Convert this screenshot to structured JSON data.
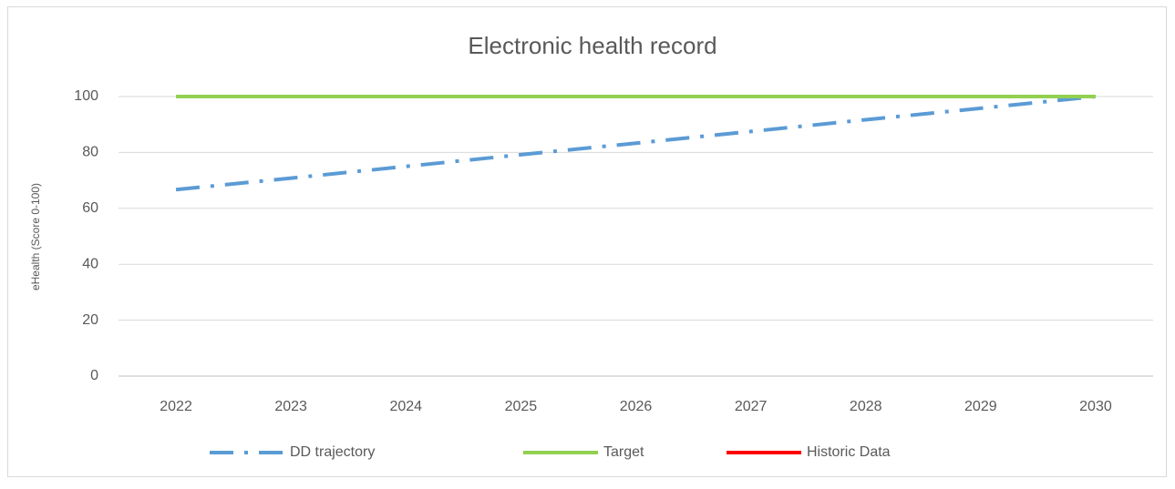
{
  "chart_data": {
    "type": "line",
    "title": "Electronic health record",
    "ylabel": "eHealth (Score 0-100)",
    "categories": [
      "2022",
      "2023",
      "2024",
      "2025",
      "2026",
      "2027",
      "2028",
      "2029",
      "2030"
    ],
    "series": [
      {
        "name": "DD trajectory",
        "color": "#5b9bd5",
        "dash": "long-dash-dot",
        "values": [
          66.7,
          70.8,
          75,
          79.2,
          83.3,
          87.5,
          91.7,
          95.8,
          100
        ]
      },
      {
        "name": "Target",
        "color": "#92d050",
        "values": [
          100,
          100,
          100,
          100,
          100,
          100,
          100,
          100,
          100
        ]
      },
      {
        "name": "Historic Data",
        "color": "#ff0000",
        "values": [
          null,
          null,
          null,
          null,
          null,
          null,
          null,
          null,
          null
        ]
      }
    ],
    "ylim": [
      0,
      100
    ],
    "yticks": [
      0,
      20,
      40,
      60,
      80,
      100
    ],
    "grid": true,
    "legend": "bottom"
  }
}
